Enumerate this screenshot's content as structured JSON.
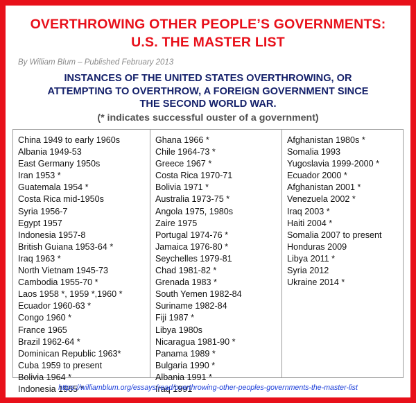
{
  "header": {
    "title_line1": "OVERTHROWING OTHER PEOPLE’S GOVERNMENTS:",
    "title_line2": "U.S. THE MASTER LIST",
    "byline": "By William Blum – Published February 2013",
    "heading_line1": "INSTANCES OF THE UNITED STATES OVERTHROWING, OR",
    "heading_line2": "ATTEMPTING TO OVERTHROW, A FOREIGN GOVERNMENT SINCE",
    "heading_line3": "THE SECOND WORLD WAR.",
    "note": "(* indicates successful ouster of a government)"
  },
  "columns": [
    [
      "China 1949 to early 1960s",
      "Albania 1949-53",
      "East Germany 1950s",
      "Iran 1953 *",
      "Guatemala 1954 *",
      "Costa Rica mid-1950s",
      "Syria 1956-7",
      "Egypt 1957",
      "Indonesia 1957-8",
      "British Guiana 1953-64 *",
      "Iraq 1963 *",
      "North Vietnam 1945-73",
      "Cambodia 1955-70 *",
      "Laos 1958 *, 1959 *,1960 *",
      "Ecuador 1960-63 *",
      "Congo 1960 *",
      "France 1965",
      "Brazil 1962-64 *",
      "Dominican Republic 1963*",
      "Cuba 1959 to present",
      "Bolivia 1964 *",
      "Indonesia 1965 *"
    ],
    [
      "Ghana 1966 *",
      "Chile 1964-73 *",
      "Greece 1967 *",
      "Costa Rica 1970-71",
      "Bolivia 1971 *",
      "Australia 1973-75 *",
      "Angola 1975, 1980s",
      "Zaire 1975",
      "Portugal 1974-76 *",
      "Jamaica 1976-80 *",
      "Seychelles 1979-81",
      "Chad 1981-82 *",
      "Grenada 1983 *",
      "South Yemen 1982-84",
      "Suriname 1982-84",
      "Fiji 1987 *",
      "Libya 1980s",
      "Nicaragua 1981-90 *",
      "Panama 1989 *",
      "Bulgaria 1990 *",
      "Albania 1991 *",
      "Iraq 1991"
    ],
    [
      "Afghanistan 1980s *",
      "Somalia 1993",
      "Yugoslavia 1999-2000 *",
      "Ecuador 2000 *",
      "Afghanistan 2001 *",
      "Venezuela 2002 *",
      "Iraq 2003 *",
      "Haiti 2004 *",
      "Somalia 2007 to present",
      "Honduras 2009",
      "Libya 2011 *",
      "Syria 2012",
      "Ukraine 2014 *"
    ]
  ],
  "footer": {
    "link": "https://williamblum.org/essays/read/overthrowing-other-peoples-governments-the-master-list"
  },
  "colors": {
    "border": "#e8101a",
    "title": "#e8101a",
    "heading": "#14206a",
    "link": "#1a3dd8"
  }
}
